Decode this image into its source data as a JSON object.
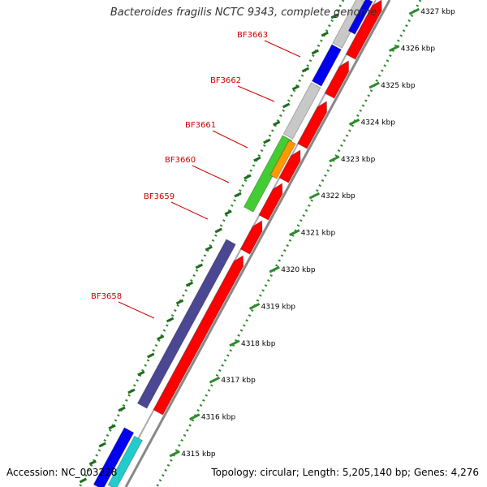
{
  "title": "Bacteroides fragilis NCTC 9343, complete genome",
  "footer": {
    "accession": "Accession: NC_003228",
    "summary": "Topology: circular; Length: 5,205,140 bp; Genes: 4,276"
  },
  "colors": {
    "ruler": "#2e8b2e",
    "gene_label": "#cc0000",
    "forward_red": "#ff0000",
    "navy": "#4b4793",
    "blue": "#0000ee",
    "gray": "#c8c8c8",
    "green": "#44cc33",
    "orange": "#ff9900",
    "cyan": "#22cccc",
    "backbone": "#888888"
  },
  "scale_labels": [
    "4315 kbp",
    "4316 kbp",
    "4317 kbp",
    "4318 kbp",
    "4319 kbp",
    "4320 kbp",
    "4321 kbp",
    "4322 kbp",
    "4323 kbp",
    "4324 kbp",
    "4325 kbp",
    "4326 kbp",
    "4327 kbp"
  ],
  "gene_labels": [
    "BF3663",
    "BF3662",
    "BF3661",
    "BF3660",
    "BF3659",
    "BF3658"
  ]
}
